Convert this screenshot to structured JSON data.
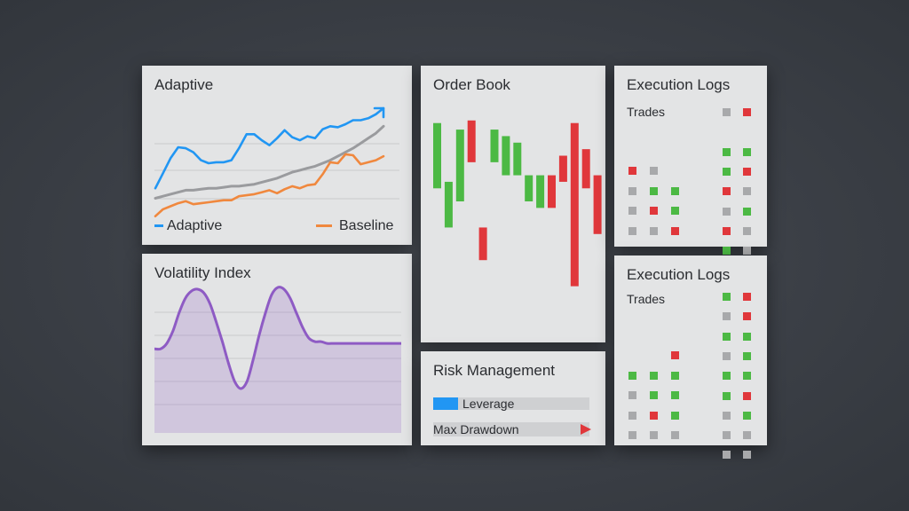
{
  "colors": {
    "blue": "#2196f3",
    "orange": "#f0883e",
    "gray": "#9a9b9e",
    "green": "#4cb944",
    "red": "#e0373b",
    "purple": "#8e5bc4",
    "cell_gray": "#a8a9ab"
  },
  "adaptive": {
    "title": "Adaptive",
    "legend": [
      "Adaptive",
      "Baseline"
    ],
    "arrow_icon": "up-right-arrow-icon",
    "chart_data": {
      "type": "line",
      "x": [
        0,
        1,
        2,
        3,
        4,
        5,
        6,
        7,
        8,
        9,
        10,
        11,
        12,
        13,
        14,
        15,
        16,
        17,
        18,
        19,
        20,
        21,
        22,
        23,
        24,
        25,
        26,
        27,
        28,
        29,
        30
      ],
      "series": [
        {
          "name": "Adaptive",
          "color": "#2196f3",
          "values": [
            10,
            25,
            40,
            51,
            50,
            46,
            38,
            35,
            36,
            36,
            38,
            50,
            64,
            64,
            58,
            53,
            60,
            68,
            61,
            58,
            62,
            60,
            69,
            72,
            71,
            74,
            78,
            78,
            80,
            84,
            90
          ]
        },
        {
          "name": "Baseline",
          "color": "#f0883e",
          "values": [
            -18,
            -11,
            -8,
            -5,
            -3,
            -6,
            -5,
            -4,
            -3,
            -2,
            -2,
            2,
            3,
            4,
            6,
            8,
            5,
            9,
            12,
            10,
            13,
            14,
            24,
            36,
            35,
            44,
            43,
            34,
            36,
            38,
            42
          ]
        },
        {
          "color": "#9a9b9e",
          "values": [
            0,
            2,
            4,
            6,
            8,
            8,
            9,
            10,
            10,
            11,
            12,
            12,
            13,
            14,
            16,
            18,
            20,
            23,
            26,
            28,
            30,
            32,
            35,
            38,
            42,
            46,
            50,
            55,
            60,
            65,
            72
          ]
        }
      ]
    }
  },
  "volatility": {
    "title": "Volatility Index",
    "chart_data": {
      "type": "area",
      "x": [
        0,
        1,
        2,
        3,
        4,
        5,
        6,
        7,
        8,
        9,
        10,
        11,
        12,
        13,
        14,
        15,
        16,
        17,
        18,
        19,
        20,
        21,
        22,
        23,
        24,
        25,
        26,
        27,
        28,
        29,
        30,
        31,
        32,
        33,
        34,
        35,
        36,
        37,
        38,
        39,
        40
      ],
      "values": [
        0,
        0,
        3,
        10,
        20,
        28,
        32,
        33,
        31,
        25,
        15,
        4,
        -8,
        -18,
        -22,
        -18,
        -6,
        8,
        20,
        30,
        34,
        33,
        28,
        20,
        12,
        6,
        4,
        4,
        3,
        3,
        3,
        3,
        3,
        3,
        3,
        3,
        3,
        3,
        3,
        3,
        3
      ],
      "color": "#8e5bc4"
    }
  },
  "order_book": {
    "title": "Order Book",
    "chart_data": {
      "type": "bar",
      "bars": [
        {
          "low": 40,
          "high": 90,
          "color": "green"
        },
        {
          "low": 10,
          "high": 45,
          "color": "green"
        },
        {
          "low": 30,
          "high": 85,
          "color": "green"
        },
        {
          "low": 60,
          "high": 92,
          "color": "red"
        },
        {
          "low": -15,
          "high": 10,
          "color": "red"
        },
        {
          "low": 60,
          "high": 85,
          "color": "green"
        },
        {
          "low": 50,
          "high": 80,
          "color": "green"
        },
        {
          "low": 50,
          "high": 75,
          "color": "green"
        },
        {
          "low": 30,
          "high": 50,
          "color": "green"
        },
        {
          "low": 25,
          "high": 50,
          "color": "green"
        },
        {
          "low": 25,
          "high": 50,
          "color": "red"
        },
        {
          "low": 45,
          "high": 65,
          "color": "red"
        },
        {
          "low": -35,
          "high": 90,
          "color": "red"
        },
        {
          "low": 40,
          "high": 70,
          "color": "red"
        },
        {
          "low": 5,
          "high": 50,
          "color": "red"
        }
      ],
      "ylim": [
        -40,
        100
      ]
    }
  },
  "risk": {
    "title": "Risk Management",
    "leverage_label": "Leverage",
    "leverage_fraction": 0.16,
    "drawdown_label": "Max Drawdown",
    "drawdown_icon": "play-triangle-icon"
  },
  "logs_top": {
    "title": "Execution Logs",
    "subtitle": "Trades",
    "grid_left": [
      [
        "red",
        "gray",
        null
      ],
      [
        "gray",
        "green",
        "green"
      ],
      [
        "gray",
        "red",
        "green"
      ],
      [
        "gray",
        "gray",
        "red"
      ]
    ],
    "grid_right": [
      [
        "gray",
        "red"
      ],
      [
        null,
        null
      ],
      [
        "green",
        "green"
      ],
      [
        "green",
        "red"
      ],
      [
        "red",
        "gray"
      ],
      [
        "gray",
        "green"
      ],
      [
        "red",
        "gray"
      ],
      [
        "green",
        "gray"
      ],
      [
        "gray",
        "gray"
      ]
    ]
  },
  "logs_bottom": {
    "title": "Execution Logs",
    "subtitle": "Trades",
    "grid_left": [
      [
        null,
        null,
        "red"
      ],
      [
        "green",
        "green",
        "green"
      ],
      [
        "gray",
        "green",
        "green"
      ],
      [
        "gray",
        "red",
        "green"
      ],
      [
        "gray",
        "gray",
        "gray"
      ]
    ],
    "grid_right": [
      [
        "green",
        "red"
      ],
      [
        "gray",
        "red"
      ],
      [
        "green",
        "green"
      ],
      [
        "gray",
        "green"
      ],
      [
        "green",
        "green"
      ],
      [
        "green",
        "red"
      ],
      [
        "gray",
        "green"
      ],
      [
        "gray",
        "gray"
      ],
      [
        "gray",
        "gray"
      ]
    ]
  }
}
